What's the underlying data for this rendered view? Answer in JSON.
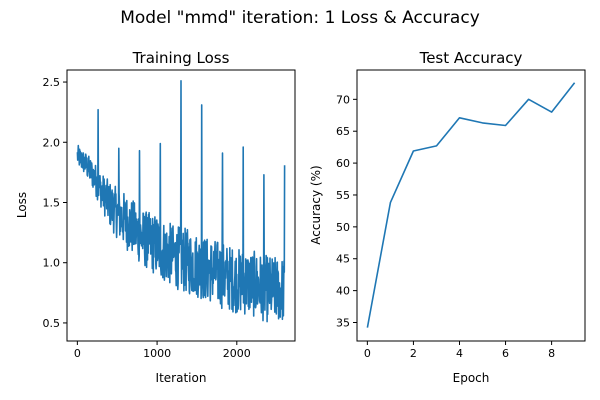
{
  "suptitle": "Model \"mmd\" iteration: 1 Loss & Accuracy",
  "colors": {
    "line": "#1f77b4",
    "axes": "#000000",
    "background": "#ffffff"
  },
  "chart_data": [
    {
      "type": "line",
      "title": "Training Loss",
      "xlabel": "Iteration",
      "ylabel": "Loss",
      "xlim": [
        -130,
        2730
      ],
      "ylim": [
        0.35,
        2.6
      ],
      "xticks": [
        0,
        1000,
        2000
      ],
      "xtick_labels": [
        "0",
        "1000",
        "2000"
      ],
      "yticks": [
        0.5,
        1.0,
        1.5,
        2.0,
        2.5
      ],
      "ytick_labels": [
        "0.5",
        "1.0",
        "1.5",
        "2.0",
        "2.5"
      ],
      "grid": false,
      "series": [
        {
          "trend_x": [
            0,
            100,
            200,
            300,
            400,
            500,
            600,
            700,
            800,
            900,
            1000,
            1100,
            1200,
            1300,
            1400,
            1500,
            1600,
            1700,
            1800,
            1900,
            2000,
            2100,
            2200,
            2300,
            2400,
            2500,
            2600
          ],
          "trend_upper": [
            1.98,
            1.92,
            1.85,
            1.75,
            1.68,
            1.62,
            1.58,
            1.52,
            1.45,
            1.42,
            1.4,
            1.35,
            1.32,
            1.3,
            1.28,
            1.25,
            1.22,
            1.2,
            1.18,
            1.15,
            1.12,
            1.12,
            1.1,
            1.08,
            1.06,
            1.05,
            1.05
          ],
          "trend_lower": [
            1.8,
            1.72,
            1.6,
            1.45,
            1.3,
            1.2,
            1.12,
            1.05,
            0.98,
            0.93,
            0.88,
            0.83,
            0.8,
            0.76,
            0.73,
            0.71,
            0.68,
            0.66,
            0.62,
            0.6,
            0.58,
            0.56,
            0.55,
            0.52,
            0.5,
            0.5,
            0.5
          ],
          "spikes": [
            {
              "x": 260,
              "y": 2.27
            },
            {
              "x": 520,
              "y": 1.95
            },
            {
              "x": 780,
              "y": 1.93
            },
            {
              "x": 1040,
              "y": 1.99
            },
            {
              "x": 1300,
              "y": 2.51
            },
            {
              "x": 1560,
              "y": 2.31
            },
            {
              "x": 1820,
              "y": 1.91
            },
            {
              "x": 2080,
              "y": 1.96
            },
            {
              "x": 2340,
              "y": 1.73
            },
            {
              "x": 2600,
              "y": 1.81
            }
          ],
          "x_end": 2600
        }
      ]
    },
    {
      "type": "line",
      "title": "Test Accuracy",
      "xlabel": "Epoch",
      "ylabel": "Accuracy (%)",
      "xlim": [
        -0.45,
        9.45
      ],
      "ylim": [
        32.1,
        74.6
      ],
      "xticks": [
        0,
        2,
        4,
        6,
        8
      ],
      "xtick_labels": [
        "0",
        "2",
        "4",
        "6",
        "8"
      ],
      "yticks": [
        35,
        40,
        45,
        50,
        55,
        60,
        65,
        70
      ],
      "ytick_labels": [
        "35",
        "40",
        "45",
        "50",
        "55",
        "60",
        "65",
        "70"
      ],
      "grid": false,
      "x": [
        0,
        1,
        2,
        3,
        4,
        5,
        6,
        7,
        8,
        9
      ],
      "series": [
        {
          "values": [
            34.2,
            53.8,
            61.9,
            62.7,
            67.1,
            66.3,
            65.9,
            70.0,
            68.0,
            72.6
          ]
        }
      ]
    }
  ]
}
